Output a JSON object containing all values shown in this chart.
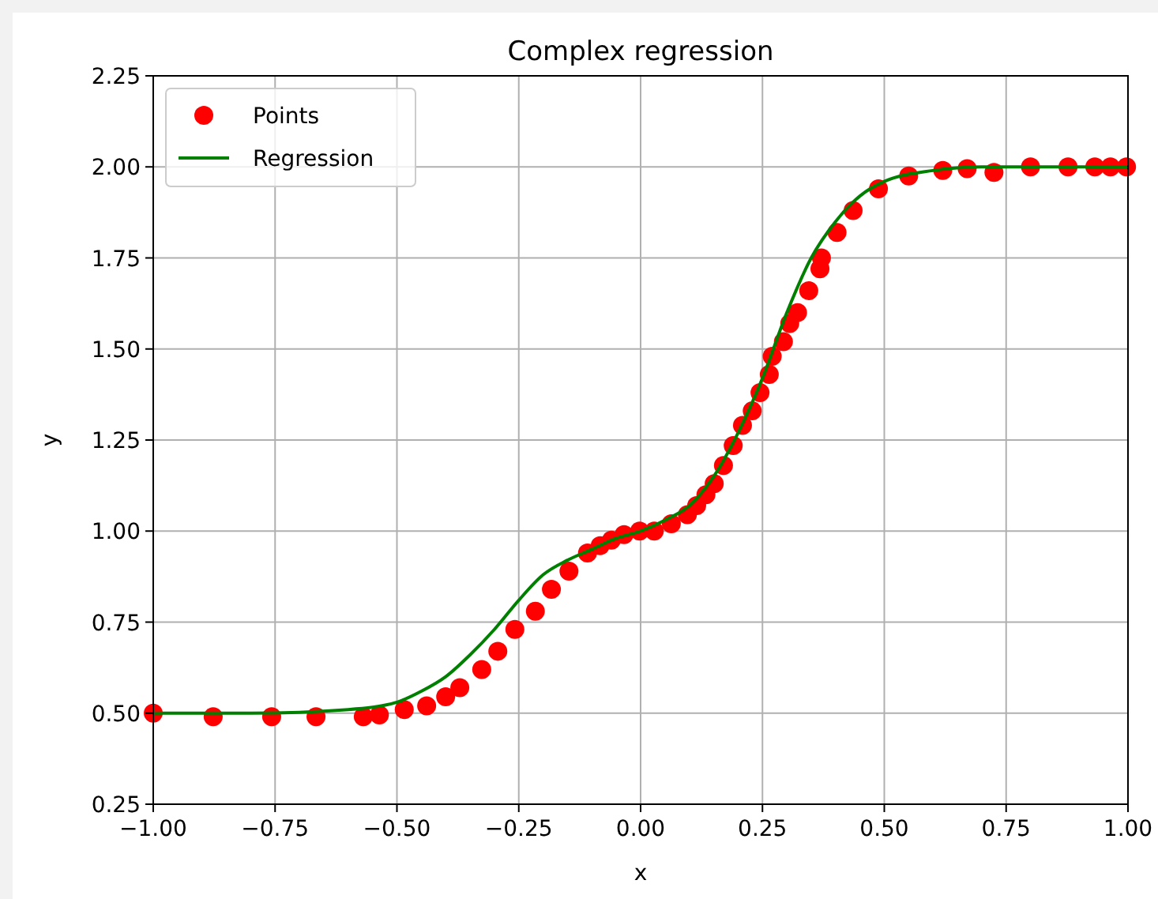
{
  "chart_data": {
    "type": "scatter",
    "title": "Complex regression",
    "xlabel": "x",
    "ylabel": "y",
    "xlim": [
      -1,
      1
    ],
    "xticks": [
      {
        "value": -1,
        "label": "−1.00"
      },
      {
        "value": -0.75,
        "label": "−0.75"
      },
      {
        "value": -0.5,
        "label": "−0.50"
      },
      {
        "value": -0.25,
        "label": "−0.25"
      },
      {
        "value": 0,
        "label": "0.00"
      },
      {
        "value": 0.25,
        "label": "0.25"
      },
      {
        "value": 0.5,
        "label": "0.50"
      },
      {
        "value": 0.75,
        "label": "0.75"
      },
      {
        "value": 1,
        "label": "1.00"
      }
    ],
    "ylim": [
      0.25,
      2.25
    ],
    "yticks": [
      {
        "value": 0.25,
        "label": "0.25"
      },
      {
        "value": 0.5,
        "label": "0.50"
      },
      {
        "value": 0.75,
        "label": "0.75"
      },
      {
        "value": 1,
        "label": "1.00"
      },
      {
        "value": 1.25,
        "label": "1.25"
      },
      {
        "value": 1.5,
        "label": "1.50"
      },
      {
        "value": 1.75,
        "label": "1.75"
      },
      {
        "value": 2,
        "label": "2.00"
      },
      {
        "value": 2.25,
        "label": "2.25"
      }
    ],
    "grid": true,
    "legend": "top left",
    "series": [
      {
        "name": "Points",
        "marker": "circle",
        "color": "#ff0000",
        "x": [
          -1.0,
          -0.877,
          -0.757,
          -0.666,
          -0.569,
          -0.536,
          -0.485,
          -0.439,
          -0.4,
          -0.371,
          -0.326,
          -0.293,
          -0.258,
          -0.216,
          -0.183,
          -0.147,
          -0.109,
          -0.083,
          -0.06,
          -0.034,
          -0.002,
          0.028,
          0.063,
          0.096,
          0.115,
          0.134,
          0.151,
          0.17,
          0.19,
          0.209,
          0.229,
          0.245,
          0.264,
          0.27,
          0.293,
          0.306,
          0.322,
          0.345,
          0.368,
          0.371,
          0.403,
          0.436,
          0.488,
          0.55,
          0.62,
          0.67,
          0.725,
          0.8,
          0.877,
          0.932,
          0.964,
          0.997
        ],
        "values": [
          0.5,
          0.49,
          0.49,
          0.49,
          0.49,
          0.495,
          0.51,
          0.52,
          0.545,
          0.57,
          0.62,
          0.67,
          0.73,
          0.78,
          0.84,
          0.89,
          0.94,
          0.96,
          0.975,
          0.99,
          1.0,
          1.0,
          1.02,
          1.045,
          1.07,
          1.1,
          1.13,
          1.18,
          1.235,
          1.29,
          1.33,
          1.38,
          1.43,
          1.48,
          1.52,
          1.57,
          1.6,
          1.66,
          1.72,
          1.75,
          1.82,
          1.88,
          1.94,
          1.975,
          1.99,
          1.995,
          1.985,
          2.0,
          2.0,
          2.0,
          2.0,
          2.0
        ]
      },
      {
        "name": "Regression",
        "type": "line",
        "marker": "none",
        "line_style": "solid",
        "color": "#008000",
        "x": [
          -1.0,
          -0.8,
          -0.6,
          -0.5,
          -0.45,
          -0.4,
          -0.35,
          -0.3,
          -0.25,
          -0.2,
          -0.15,
          -0.1,
          -0.05,
          0.0,
          0.05,
          0.1,
          0.15,
          0.2,
          0.25,
          0.3,
          0.35,
          0.4,
          0.45,
          0.5,
          0.6,
          0.7,
          0.8,
          1.0
        ],
        "values": [
          0.5,
          0.5,
          0.51,
          0.53,
          0.56,
          0.6,
          0.66,
          0.73,
          0.81,
          0.88,
          0.92,
          0.95,
          0.98,
          1.0,
          1.03,
          1.07,
          1.15,
          1.27,
          1.42,
          1.6,
          1.75,
          1.85,
          1.92,
          1.96,
          1.99,
          2.0,
          2.0,
          2.0
        ]
      }
    ]
  }
}
